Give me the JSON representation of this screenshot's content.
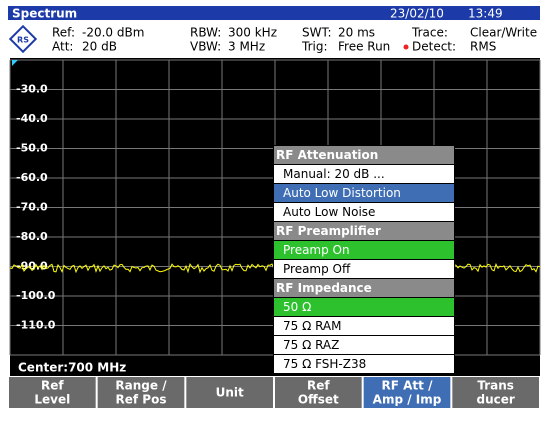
{
  "title_bar": {
    "title": "Spectrum",
    "date": "23/02/10",
    "time": "13:49"
  },
  "settings": [
    [
      "Ref:",
      "-20.0 dBm"
    ],
    [
      "Att:",
      "20 dB"
    ],
    [
      "RBW:",
      "300 kHz"
    ],
    [
      "VBW:",
      "3 MHz"
    ],
    [
      "SWT:",
      "20 ms"
    ],
    [
      "Trig:",
      "Free Run"
    ],
    [
      "Trace:",
      "Clear/Write"
    ],
    [
      "Detect:",
      "RMS"
    ]
  ],
  "y_labels": [
    "-30.0",
    "-40.0",
    "-50.0",
    "-60.0",
    "-70.0",
    "-80.0",
    "-90.0",
    "-100.0",
    "-110.0"
  ],
  "center": "Center:700 MHz",
  "menu": [
    {
      "text": "RF Attenuation",
      "kind": "header"
    },
    {
      "text": "Manual:  20  dB ...",
      "kind": "item"
    },
    {
      "text": "Auto Low Distortion",
      "kind": "selected"
    },
    {
      "text": "Auto Low Noise",
      "kind": "item"
    },
    {
      "text": "RF Preamplifier",
      "kind": "header"
    },
    {
      "text": "Preamp On",
      "kind": "active"
    },
    {
      "text": "Preamp Off",
      "kind": "item"
    },
    {
      "text": "RF Impedance",
      "kind": "header"
    },
    {
      "text": "50 Ω",
      "kind": "active"
    },
    {
      "text": "75 Ω RAM",
      "kind": "item"
    },
    {
      "text": "75 Ω RAZ",
      "kind": "item"
    },
    {
      "text": "75 Ω FSH-Z38",
      "kind": "item"
    }
  ],
  "softkeys": [
    {
      "lines": [
        "Ref",
        "Level"
      ],
      "active": false
    },
    {
      "lines": [
        "Range /",
        "Ref Pos"
      ],
      "active": false
    },
    {
      "lines": [
        "Unit"
      ],
      "active": false
    },
    {
      "lines": [
        "Ref",
        "Offset"
      ],
      "active": false
    },
    {
      "lines": [
        "RF Att /",
        "Amp / Imp"
      ],
      "active": true
    },
    {
      "lines": [
        "Trans",
        "ducer"
      ],
      "active": false
    }
  ]
}
